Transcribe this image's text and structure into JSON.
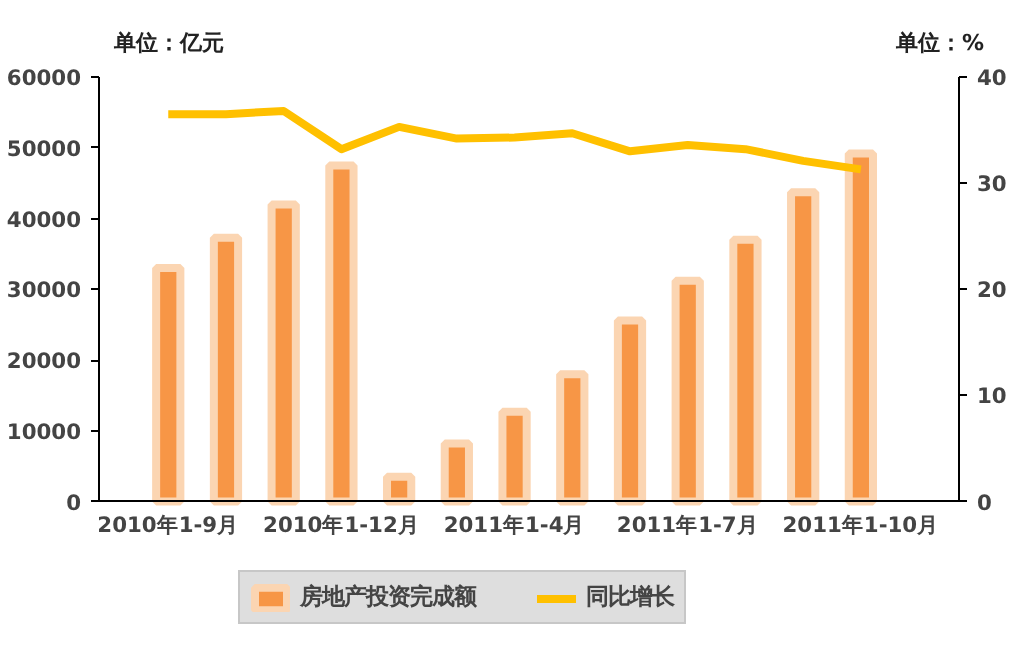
{
  "chart_data": {
    "type": "bar",
    "categories": [
      "2010年1-9月",
      null,
      null,
      "2010年1-12月",
      null,
      null,
      "2011年1-4月",
      null,
      null,
      "2011年1-7月",
      null,
      null,
      "2011年1-10月"
    ],
    "ylabel": "单位：亿元",
    "y2label": "单位：%",
    "ylim": [
      0,
      60000
    ],
    "yticks": [
      0,
      10000,
      20000,
      30000,
      40000,
      50000,
      60000
    ],
    "y2lim": [
      0,
      40
    ],
    "y2ticks": [
      0,
      10,
      20,
      30,
      40
    ],
    "series": [
      {
        "name": "房地产投资完成额",
        "color": "#f79646",
        "values": [
          33000,
          37300,
          42000,
          47500,
          3500,
          8200,
          12700,
          18000,
          25600,
          31200,
          37000,
          43700,
          49200
        ]
      },
      {
        "name": "同比增长",
        "type": "line",
        "axis": "y2",
        "color": "#ffc000",
        "values": [
          36.5,
          36.5,
          36.8,
          33.2,
          35.3,
          34.2,
          34.3,
          34.7,
          33.0,
          33.6,
          33.2,
          32.1,
          31.3
        ]
      }
    ],
    "grid": false,
    "legend": "bottom"
  }
}
